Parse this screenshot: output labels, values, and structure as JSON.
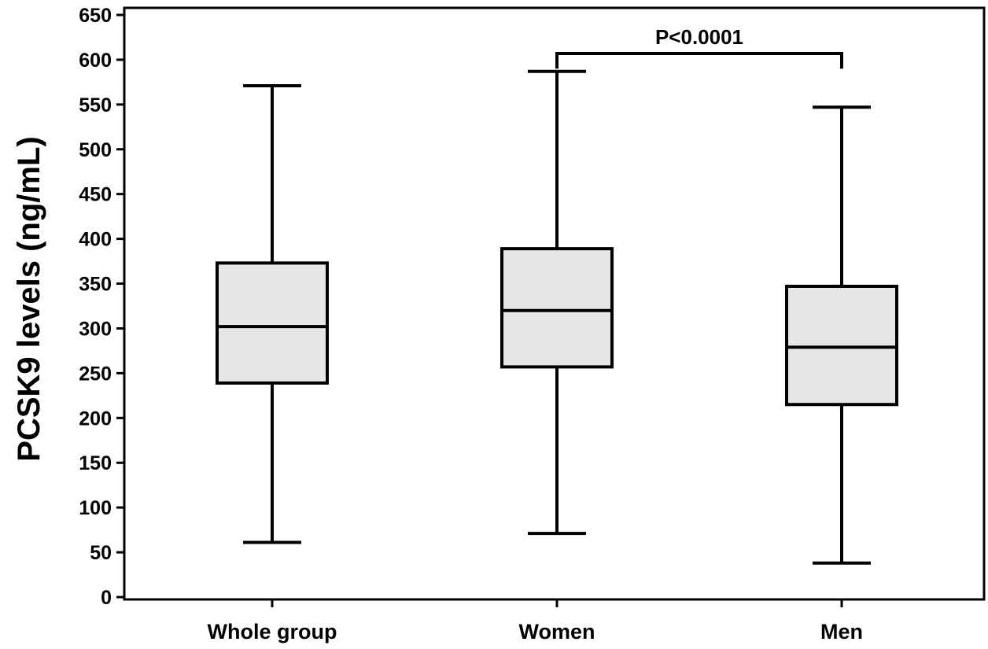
{
  "chart_data": {
    "type": "box",
    "title": "",
    "xlabel": "",
    "ylabel": "PCSK9 levels (ng/mL)",
    "ylim": [
      0,
      650
    ],
    "yticks": [
      0,
      50,
      100,
      150,
      200,
      250,
      300,
      350,
      400,
      450,
      500,
      550,
      600,
      650
    ],
    "categories": [
      "Whole group",
      "Women",
      "Men"
    ],
    "boxes": [
      {
        "category": "Whole group",
        "min": 61,
        "q1": 239,
        "median": 302,
        "q3": 373,
        "max": 571
      },
      {
        "category": "Women",
        "min": 71,
        "q1": 257,
        "median": 320,
        "q3": 389,
        "max": 587
      },
      {
        "category": "Men",
        "min": 38,
        "q1": 215,
        "median": 279,
        "q3": 347,
        "max": 547
      }
    ],
    "annotations": [
      {
        "text": "P<0.0001",
        "from": "Women",
        "to": "Men",
        "bracket_y": 607,
        "bracket_tip_y": 590
      }
    ],
    "grid": false,
    "legend": "none",
    "colors": {
      "box_fill": "#e6e6e6",
      "stroke": "#000000"
    }
  }
}
